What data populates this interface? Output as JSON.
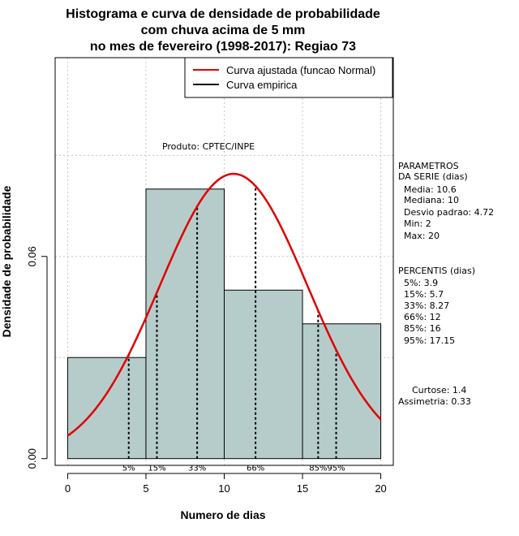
{
  "chart_data": {
    "type": "histogram",
    "title_lines": [
      "Histograma e curva de densidade de probabilidade",
      "com chuva acima de 5 mm",
      "no mes de fevereiro (1998-2017): Regiao 73"
    ],
    "xlabel": "Numero de dias",
    "ylabel": "Densidade de probabilidade",
    "xlim": [
      -0.8,
      20.8
    ],
    "ylim": [
      -0.002,
      0.119
    ],
    "x_ticks": [
      0,
      5,
      10,
      15,
      20
    ],
    "y_ticks": [
      0.0,
      0.06
    ],
    "y_tick_labels": [
      "0.00",
      "0.06"
    ],
    "grid": true,
    "bars": [
      {
        "x0": 0,
        "x1": 5,
        "value": 0.03
      },
      {
        "x0": 5,
        "x1": 10,
        "value": 0.08
      },
      {
        "x0": 10,
        "x1": 15,
        "value": 0.05
      },
      {
        "x0": 15,
        "x1": 20,
        "value": 0.04
      }
    ],
    "bar_color": "#b6cccb",
    "normal_curve": {
      "mean": 10.6,
      "sd": 4.72,
      "x_from": 0,
      "x_to": 20,
      "color": "#e00000"
    },
    "percentiles": [
      {
        "label": "5%",
        "x": 3.9
      },
      {
        "label": "15%",
        "x": 5.7
      },
      {
        "label": "33%",
        "x": 8.27
      },
      {
        "label": "66%",
        "x": 12
      },
      {
        "label": "85%",
        "x": 16
      },
      {
        "label": "95%",
        "x": 17.15
      }
    ],
    "legend": {
      "position": "top-right",
      "items": [
        {
          "label": "Curva ajustada (funcao Normal)",
          "color": "#e00000"
        },
        {
          "label": "Curva empirica",
          "color": "#000000"
        }
      ]
    },
    "product_label": "Produto: CPTEC/INPE"
  },
  "stats_panel": {
    "parametros_heading": [
      "PARAMETROS",
      "DA SERIE (dias)"
    ],
    "parametros": [
      "Media: 10.6",
      "Mediana: 10",
      "Desvio padrao: 4.72",
      "Min: 2",
      "Max: 20"
    ],
    "percentis_heading": "PERCENTIS (dias)",
    "percentis": [
      "5%: 3.9",
      "15%: 5.7",
      "33%: 8.27",
      "66%: 12",
      "85%: 16",
      "95%: 17.15"
    ],
    "curtose": "Curtose: 1.4",
    "assimetria": "Assimetria: 0.33"
  }
}
